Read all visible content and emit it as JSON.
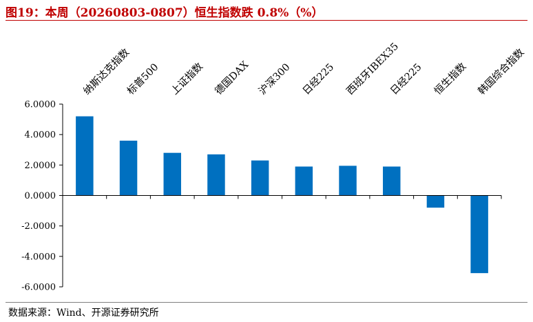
{
  "figure": {
    "title": "图19：本周（20260803-0807）恒生指数跌 0.8%（%）",
    "source": "数据来源：Wind、开源证券研究所"
  },
  "chart_data": {
    "type": "bar",
    "categories": [
      "纳斯达克指数",
      "标普500",
      "上证指数",
      "德国DAX",
      "沪深300",
      "日经225",
      "西班牙IBEX35",
      "日经225",
      "恒生指数",
      "韩国综合指数"
    ],
    "values": [
      5.2,
      3.6,
      2.8,
      2.7,
      2.3,
      1.9,
      1.95,
      1.9,
      -0.8,
      -5.1
    ],
    "ylim": [
      -6,
      6
    ],
    "yticks": [
      "6.0000",
      "4.0000",
      "2.0000",
      "0.0000",
      "-2.0000",
      "-4.0000",
      "-6.0000"
    ],
    "ytick_values": [
      6,
      4,
      2,
      0,
      -2,
      -4,
      -6
    ],
    "bar_color": "#0070c0",
    "grid": false,
    "title": "",
    "xlabel": "",
    "ylabel": ""
  }
}
